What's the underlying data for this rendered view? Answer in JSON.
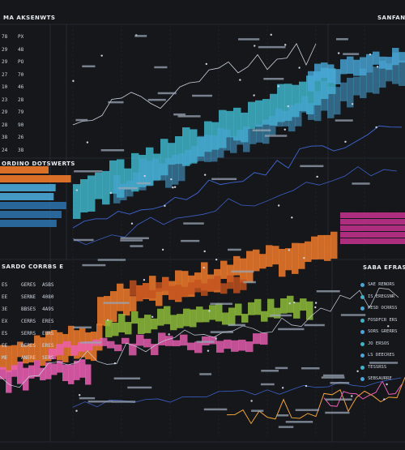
{
  "headers": {
    "top_left": "MA AKSENWTS",
    "top_right": "SANFANE",
    "mid_left": "ORDINO DOTSWERTS",
    "lower_left": "SARDO CORRBS E",
    "lower_right": "SABA EFRAS"
  },
  "palette": {
    "background": "#15171b",
    "grid": "#2a2f38",
    "line": "#c9d2de",
    "blue": "#4aa8d8",
    "blue_dark": "#2b6fa8",
    "teal": "#3fb4c8",
    "orange": "#f07a2a",
    "orange_dark": "#c4521e",
    "green": "#8dbb3a",
    "pink": "#ec5fb4",
    "magenta": "#c8338f",
    "navy_line": "#3d5fc4",
    "amber_line": "#f0a23a"
  },
  "left_numbers_top": [
    [
      "78",
      "PX"
    ],
    [
      "29",
      "48"
    ],
    [
      "29",
      "PO"
    ],
    [
      "27",
      "70"
    ],
    [
      "10",
      "46"
    ],
    [
      "23",
      "28"
    ],
    [
      "29",
      "79"
    ],
    [
      "28",
      "90"
    ],
    [
      "38",
      "26"
    ],
    [
      "24",
      "38"
    ]
  ],
  "left_numbers_bottom": [
    [
      "ES",
      "GERES",
      "ASBS"
    ],
    [
      "EE",
      "SERNE",
      "4080"
    ],
    [
      "3E",
      "BBSES",
      "4A9S"
    ],
    [
      "EX",
      "CERRS",
      "ERES"
    ],
    [
      "ES",
      "SERRS",
      "EURS"
    ],
    [
      "EE",
      "DERES",
      "ERES"
    ],
    [
      "ME",
      "ANERE",
      "SERS"
    ]
  ],
  "right_legend": [
    "SAE RENORS",
    "IS EREGSNR",
    "FESD OCRRSS",
    "FOSDFCR ERS",
    "SORS GRERRS",
    "JO ERSOS",
    "LS DEECRES",
    "TESSRSS",
    "SEBSAURRE"
  ]
}
